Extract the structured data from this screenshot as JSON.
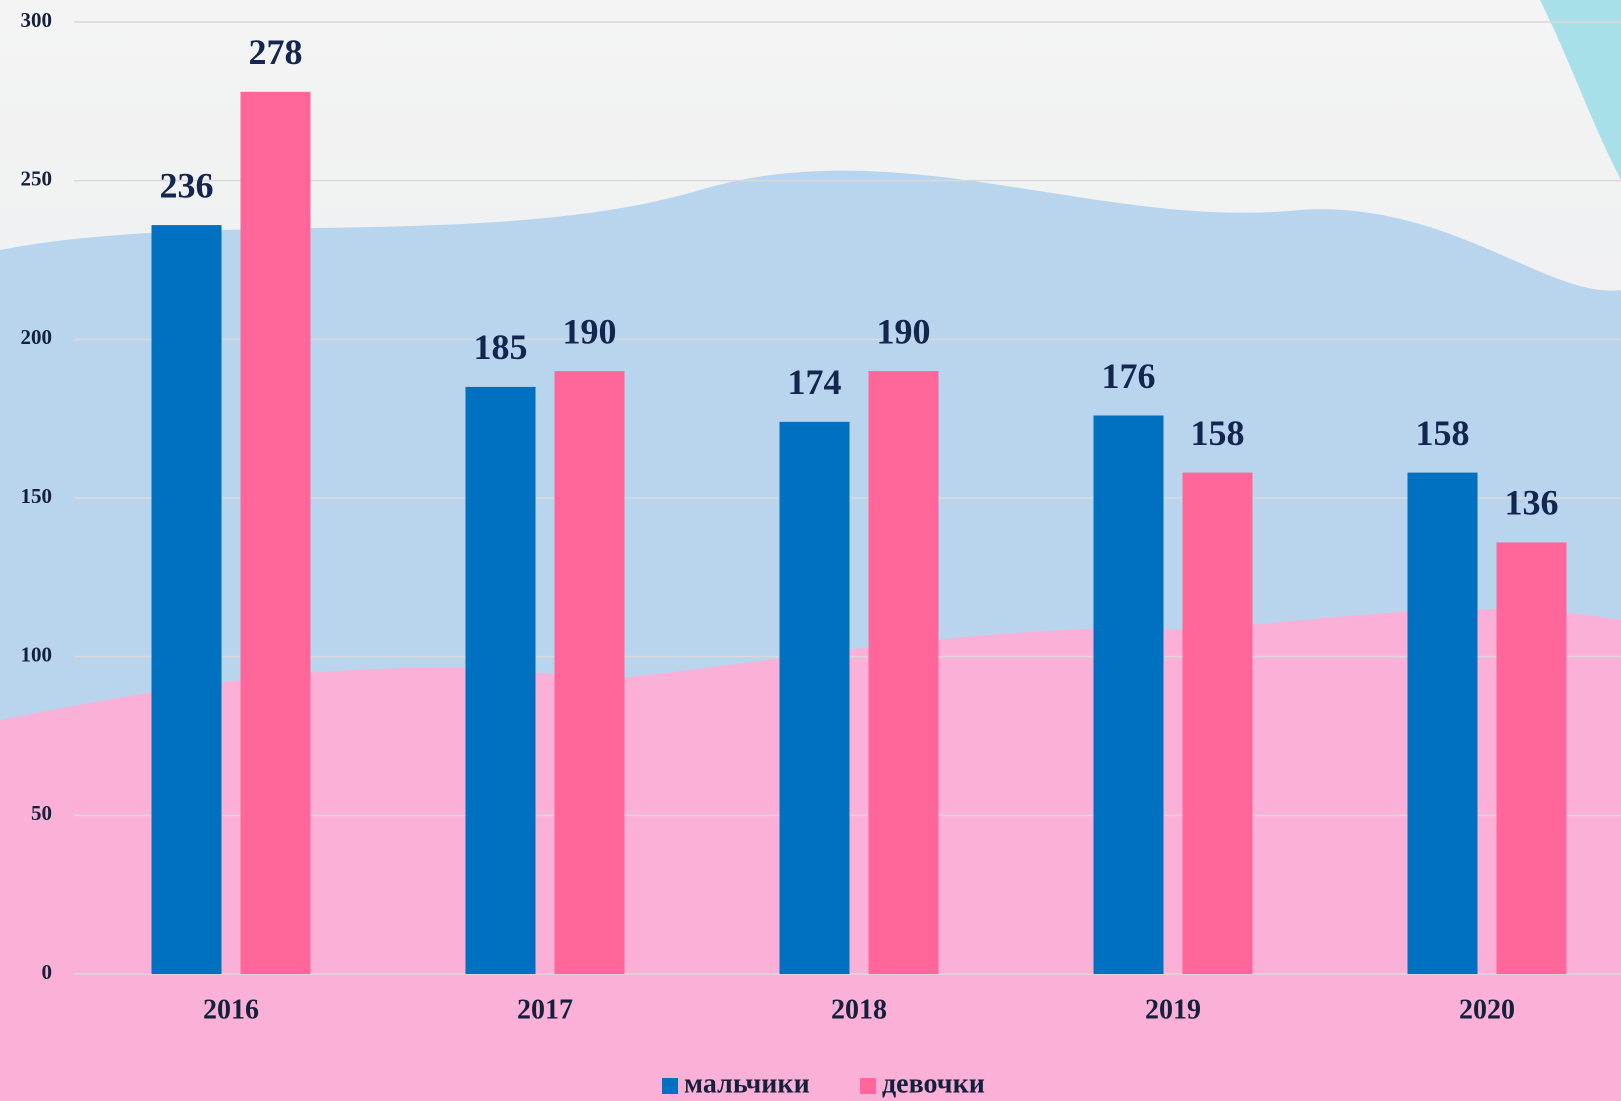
{
  "chart_data": {
    "type": "bar",
    "categories": [
      "2016",
      "2017",
      "2018",
      "2019",
      "2020"
    ],
    "series": [
      {
        "name": "мальчики",
        "color": "#0070c0",
        "values": [
          236,
          185,
          174,
          176,
          158
        ]
      },
      {
        "name": "девочки",
        "color": "#ff6699",
        "values": [
          278,
          190,
          190,
          158,
          136
        ]
      }
    ],
    "ylim": [
      0,
      300
    ],
    "yticks": [
      0,
      50,
      100,
      150,
      200,
      250,
      300
    ],
    "grid": true,
    "legend": "bottom"
  }
}
